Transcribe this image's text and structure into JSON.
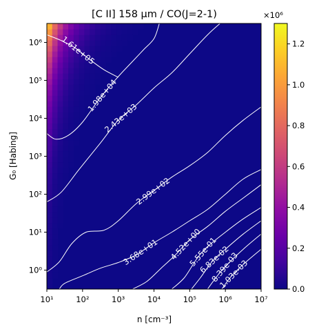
{
  "chart_data": {
    "type": "heatmap",
    "title": "[C II] 158 μm / CO(J=2-1)",
    "xlabel": "n [cm⁻³]",
    "ylabel": "G₀ [Habing]",
    "x_scale": "log",
    "y_scale": "log",
    "xlim": [
      10,
      10000000
    ],
    "ylim": [
      0.316,
      3160000
    ],
    "x_ticks": [
      {
        "value": 10,
        "label": "10¹"
      },
      {
        "value": 100,
        "label": "10²"
      },
      {
        "value": 1000,
        "label": "10³"
      },
      {
        "value": 10000,
        "label": "10⁴"
      },
      {
        "value": 100000,
        "label": "10⁵"
      },
      {
        "value": 1000000,
        "label": "10⁶"
      },
      {
        "value": 10000000,
        "label": "10⁷"
      }
    ],
    "y_ticks": [
      {
        "value": 1,
        "label": "10⁰"
      },
      {
        "value": 10,
        "label": "10¹"
      },
      {
        "value": 100,
        "label": "10²"
      },
      {
        "value": 1000,
        "label": "10³"
      },
      {
        "value": 10000,
        "label": "10⁴"
      },
      {
        "value": 100000,
        "label": "10⁵"
      },
      {
        "value": 1000000,
        "label": "10⁶"
      }
    ],
    "colormap": "plasma",
    "colorbar": {
      "min": 0,
      "max": 1300000,
      "ticks": [
        0,
        0.2,
        0.4,
        0.6,
        0.8,
        1.0,
        1.2
      ],
      "tick_labels": [
        "0.0",
        "0.2",
        "0.4",
        "0.6",
        "0.8",
        "1.0",
        "1.2"
      ],
      "multiplier_label": "×10⁶"
    },
    "peak": {
      "n": 10,
      "G0": 3160000,
      "value": 1300000
    },
    "contours": [
      {
        "level": 161000,
        "label": "1.61e+05",
        "path": [
          [
            1.0,
            6.2
          ],
          [
            1.4,
            6.05
          ],
          [
            1.8,
            5.85
          ],
          [
            2.2,
            5.55
          ],
          [
            2.6,
            5.28
          ],
          [
            3.0,
            5.08
          ]
        ]
      },
      {
        "level": 19800,
        "label": "1.98e+04",
        "path": [
          [
            1.0,
            3.6
          ],
          [
            1.25,
            3.45
          ],
          [
            1.6,
            3.55
          ],
          [
            2.0,
            3.9
          ],
          [
            2.5,
            4.55
          ],
          [
            3.0,
            5.1
          ],
          [
            3.4,
            5.5
          ],
          [
            3.7,
            5.8
          ],
          [
            4.0,
            6.1
          ],
          [
            4.15,
            6.5
          ]
        ]
      },
      {
        "level": 2430,
        "label": "2.43e+03",
        "path": [
          [
            1.0,
            1.8
          ],
          [
            1.4,
            2.05
          ],
          [
            1.9,
            2.65
          ],
          [
            2.5,
            3.35
          ],
          [
            3.0,
            3.95
          ],
          [
            3.5,
            4.35
          ],
          [
            4.0,
            4.8
          ],
          [
            4.5,
            5.2
          ],
          [
            5.0,
            5.7
          ],
          [
            5.5,
            6.2
          ],
          [
            5.85,
            6.5
          ]
        ]
      },
      {
        "level": 299,
        "label": "2.99e+02",
        "path": [
          [
            1.0,
            -0.05
          ],
          [
            1.35,
            0.22
          ],
          [
            1.7,
            0.7
          ],
          [
            2.1,
            1.0
          ],
          [
            2.6,
            1.05
          ],
          [
            3.0,
            1.3
          ],
          [
            3.5,
            1.75
          ],
          [
            4.0,
            2.1
          ],
          [
            4.5,
            2.45
          ],
          [
            5.0,
            2.75
          ],
          [
            5.5,
            3.1
          ],
          [
            6.0,
            3.55
          ],
          [
            6.5,
            3.95
          ],
          [
            7.0,
            4.3
          ]
        ]
      },
      {
        "level": 36.8,
        "label": "3.68e+01",
        "path": [
          [
            1.35,
            -0.5
          ],
          [
            1.5,
            -0.35
          ],
          [
            2.0,
            -0.15
          ],
          [
            2.5,
            0.05
          ],
          [
            3.0,
            0.2
          ],
          [
            3.5,
            0.4
          ],
          [
            4.0,
            0.72
          ],
          [
            4.5,
            1.0
          ],
          [
            5.0,
            1.3
          ],
          [
            5.5,
            1.6
          ],
          [
            6.0,
            2.0
          ],
          [
            6.5,
            2.4
          ],
          [
            7.0,
            2.65
          ]
        ]
      },
      {
        "level": 4.52,
        "label": "4.52e+00",
        "path": [
          [
            3.4,
            -0.5
          ],
          [
            3.8,
            -0.3
          ],
          [
            4.2,
            0.05
          ],
          [
            4.6,
            0.4
          ],
          [
            5.0,
            0.8
          ],
          [
            5.5,
            1.15
          ],
          [
            6.0,
            1.55
          ],
          [
            6.5,
            1.9
          ],
          [
            7.0,
            2.25
          ]
        ]
      },
      {
        "level": 0.555,
        "label": "5.55e-01",
        "path": [
          [
            4.5,
            -0.5
          ],
          [
            4.85,
            -0.2
          ],
          [
            5.2,
            0.3
          ],
          [
            5.5,
            0.62
          ],
          [
            6.0,
            1.0
          ],
          [
            6.5,
            1.35
          ],
          [
            7.0,
            1.65
          ]
        ]
      },
      {
        "level": 0.0683,
        "label": "6.83e-02",
        "path": [
          [
            5.05,
            -0.5
          ],
          [
            5.3,
            -0.2
          ],
          [
            5.65,
            0.25
          ],
          [
            6.0,
            0.55
          ],
          [
            6.5,
            0.95
          ],
          [
            7.0,
            1.3
          ]
        ]
      },
      {
        "level": 0.00839,
        "label": "8.39e-03",
        "path": [
          [
            5.5,
            -0.5
          ],
          [
            5.75,
            -0.18
          ],
          [
            6.0,
            0.1
          ],
          [
            6.5,
            0.55
          ],
          [
            7.0,
            0.95
          ]
        ]
      },
      {
        "level": 0.00103,
        "label": "1.03e-03",
        "path": [
          [
            5.9,
            -0.5
          ],
          [
            6.15,
            -0.18
          ],
          [
            6.5,
            0.15
          ],
          [
            7.0,
            0.55
          ]
        ]
      }
    ]
  }
}
